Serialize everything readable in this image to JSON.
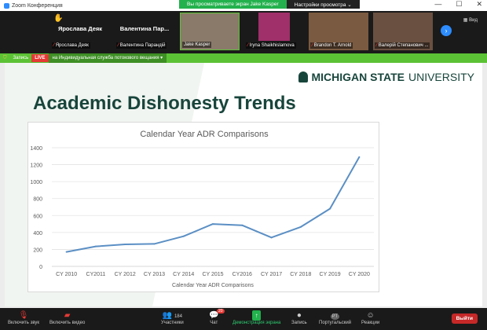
{
  "window": {
    "title": "Zoom Конференция",
    "banner_viewing": "Вы просматриваете экран Jake Kasper",
    "banner_settings": "Настройки просмотра ⌄",
    "minimize": "—",
    "maximize": "☐",
    "close": "✕"
  },
  "participants": [
    {
      "big": "Ярослава Деяк",
      "name": "Ярослава Деяк",
      "raised_hand": true
    },
    {
      "big": "Валентина  Пар...",
      "name": "Валентина Парандій"
    },
    {
      "name": "Jake Kasper",
      "video": true,
      "color": "#8a7a6a"
    },
    {
      "name": "Iryna Shaikhislamova",
      "video": true,
      "color": "#a0306a"
    },
    {
      "name": "Brandon T. Arnold",
      "video": true,
      "color": "#7a5a40"
    },
    {
      "name": "Валерій Степанович ...",
      "video": true,
      "color": "#6a5040"
    }
  ],
  "view_label": "Вид",
  "status": {
    "record": "Запись",
    "live": "LIVE",
    "stream": "на Индивидуальная служба потокового вещания ▾"
  },
  "slide": {
    "logo_bold": "MICHIGAN STATE",
    "logo_light": "UNIVERSITY",
    "title": "Academic Dishonesty Trends"
  },
  "chart_data": {
    "type": "line",
    "title": "Calendar Year ADR Comparisons",
    "xlabel": "Calendar Year ADR Comparisons",
    "ylabel": "",
    "categories": [
      "CY 2010",
      "CY2011",
      "CY 2012",
      "CY 2013",
      "CY 2014",
      "CY 2015",
      "CY2016",
      "CY 2017",
      "CY 2018",
      "CY 2019",
      "CY 2020"
    ],
    "values": [
      170,
      235,
      260,
      265,
      355,
      500,
      485,
      340,
      465,
      680,
      1290
    ],
    "ylim": [
      0,
      1400
    ],
    "yticks": [
      0,
      200,
      400,
      600,
      800,
      1000,
      1200,
      1400
    ],
    "grid": true,
    "color": "#5b8fc4"
  },
  "toolbar": {
    "unmute": "Включить звук",
    "video": "Включить видео",
    "participants": "Участники",
    "participants_count": "184",
    "chat": "Чат",
    "chat_badge": "20",
    "share": "Демонстрация экрана",
    "record": "Запись",
    "user": "Португальский",
    "user_initials": "PT",
    "reactions": "Реакции",
    "leave": "Выйти"
  }
}
